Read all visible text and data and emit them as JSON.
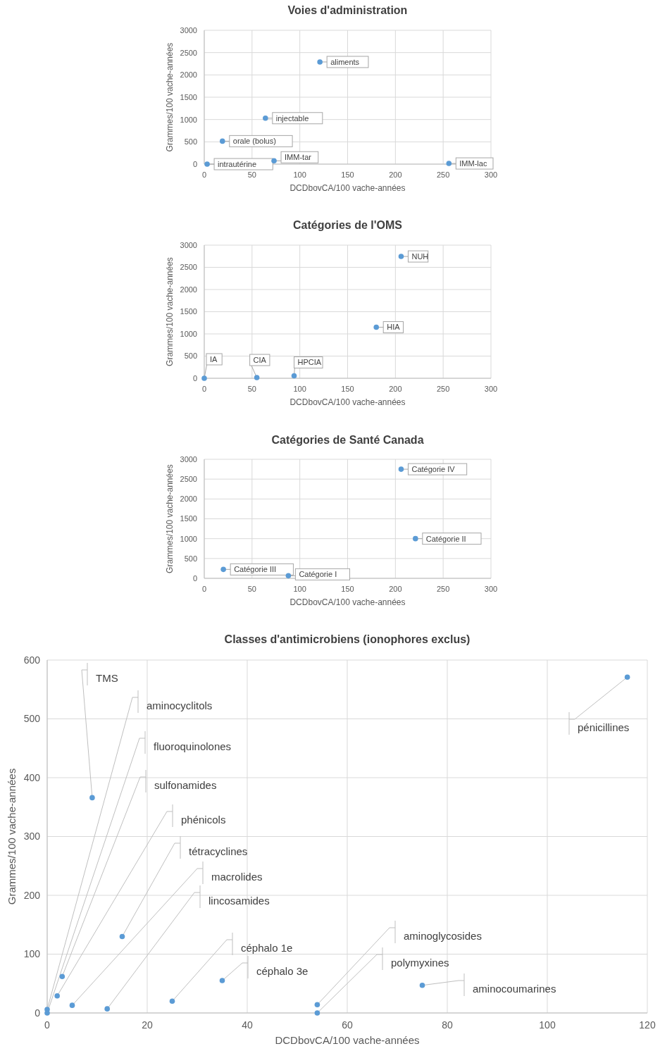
{
  "chart_data": [
    {
      "type": "scatter",
      "title": "Voies d'administration",
      "xlabel": "DCDbovCA/100 vache-années",
      "ylabel": "Grammes/100 vache-années",
      "xlim": [
        0,
        300
      ],
      "xticks": [
        0,
        50,
        100,
        150,
        200,
        250,
        300
      ],
      "ylim": [
        0,
        3000
      ],
      "yticks": [
        0,
        500,
        1000,
        1500,
        2000,
        2500,
        3000
      ],
      "grid": true,
      "marker": "circle",
      "series": [
        {
          "color": "#5b9bd5",
          "x": [
            121,
            64,
            19,
            3,
            73,
            256
          ],
          "values": [
            2290,
            1030,
            515,
            0,
            75,
            15
          ]
        }
      ],
      "annotations": [
        {
          "text": "aliments",
          "x": 121,
          "y": 2290
        },
        {
          "text": "injectable",
          "x": 64,
          "y": 1030
        },
        {
          "text": "orale (bolus)",
          "x": 19,
          "y": 515
        },
        {
          "text": "intrautérine",
          "x": 3,
          "y": 0
        },
        {
          "text": "IMM-tar",
          "x": 73,
          "y": 75
        },
        {
          "text": "IMM-lac",
          "x": 256,
          "y": 15
        }
      ]
    },
    {
      "type": "scatter",
      "title": "Catégories de l'OMS",
      "xlabel": "DCDbovCA/100 vache-années",
      "ylabel": "Grammes/100 vache-années",
      "xlim": [
        0,
        300
      ],
      "xticks": [
        0,
        50,
        100,
        150,
        200,
        250,
        300
      ],
      "ylim": [
        0,
        3000
      ],
      "yticks": [
        0,
        500,
        1000,
        1500,
        2000,
        2500,
        3000
      ],
      "grid": true,
      "marker": "circle",
      "series": [
        {
          "color": "#5b9bd5",
          "x": [
            206,
            180,
            0,
            55,
            94
          ],
          "values": [
            2745,
            1150,
            0,
            15,
            55
          ]
        }
      ],
      "annotations": [
        {
          "text": "NUH",
          "x": 206,
          "y": 2745
        },
        {
          "text": "HIA",
          "x": 180,
          "y": 1150
        },
        {
          "text": "IA",
          "x": 0,
          "y": 0
        },
        {
          "text": "CIA",
          "x": 55,
          "y": 15
        },
        {
          "text": "HPCIA",
          "x": 94,
          "y": 55
        }
      ]
    },
    {
      "type": "scatter",
      "title": "Catégories de Santé Canada",
      "xlabel": "DCDbovCA/100 vache-années",
      "ylabel": "Grammes/100 vache-années",
      "xlim": [
        0,
        300
      ],
      "xticks": [
        0,
        50,
        100,
        150,
        200,
        250,
        300
      ],
      "ylim": [
        0,
        3000
      ],
      "yticks": [
        0,
        500,
        1000,
        1500,
        2000,
        2500,
        3000
      ],
      "grid": true,
      "marker": "circle",
      "series": [
        {
          "color": "#5b9bd5",
          "x": [
            206,
            221,
            20,
            88
          ],
          "values": [
            2750,
            1000,
            225,
            65
          ]
        }
      ],
      "annotations": [
        {
          "text": "Catégorie IV",
          "x": 206,
          "y": 2750
        },
        {
          "text": "Catégorie II",
          "x": 221,
          "y": 1000
        },
        {
          "text": "Catégorie III",
          "x": 20,
          "y": 225
        },
        {
          "text": "Catégorie I",
          "x": 88,
          "y": 65
        }
      ]
    },
    {
      "type": "scatter",
      "title": "Classes d'antimicrobiens (ionophores exclus)",
      "xlabel": "DCDbovCA/100 vache-années",
      "ylabel": "Grammes/100 vache-années",
      "xlim": [
        0,
        120
      ],
      "xticks": [
        0,
        20,
        40,
        60,
        80,
        100,
        120
      ],
      "ylim": [
        0,
        600
      ],
      "yticks": [
        0,
        100,
        200,
        300,
        400,
        500,
        600
      ],
      "grid": true,
      "marker": "circle",
      "series": [
        {
          "color": "#5b9bd5",
          "x": [
            9,
            0,
            0,
            3,
            2,
            15,
            5,
            12,
            25,
            35,
            54,
            54,
            75,
            116
          ],
          "values": [
            366,
            6,
            0,
            62,
            29,
            130,
            13,
            7,
            20,
            55,
            14,
            0,
            47,
            571
          ]
        }
      ],
      "annotations": [
        {
          "text": "TMS",
          "x": 9,
          "y": 366
        },
        {
          "text": "aminocyclitols",
          "x": 0,
          "y": 6
        },
        {
          "text": "fluoroquinolones",
          "x": 0,
          "y": 0
        },
        {
          "text": "sulfonamides",
          "x": 3,
          "y": 62
        },
        {
          "text": "phénicols",
          "x": 2,
          "y": 29
        },
        {
          "text": "tétracyclines",
          "x": 15,
          "y": 130
        },
        {
          "text": "macrolides",
          "x": 5,
          "y": 13
        },
        {
          "text": "lincosamides",
          "x": 12,
          "y": 7
        },
        {
          "text": "céphalo 1e",
          "x": 25,
          "y": 20
        },
        {
          "text": "céphalo 3e",
          "x": 35,
          "y": 55
        },
        {
          "text": "aminoglycosides",
          "x": 54,
          "y": 14
        },
        {
          "text": "polymyxines",
          "x": 54,
          "y": 0
        },
        {
          "text": "aminocoumarines",
          "x": 75,
          "y": 47
        },
        {
          "text": "pénicillines",
          "x": 116,
          "y": 571
        }
      ]
    }
  ]
}
